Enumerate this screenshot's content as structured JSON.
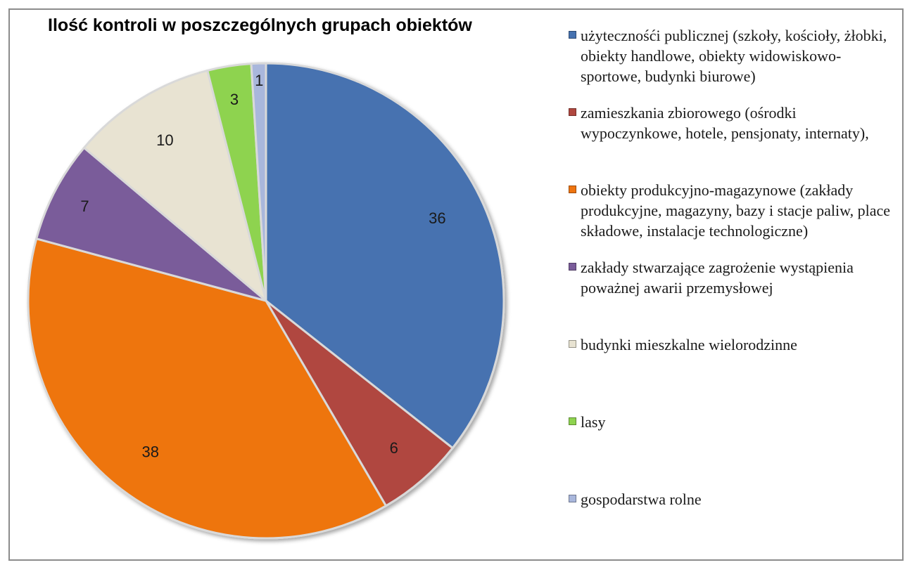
{
  "chart_data": {
    "type": "pie",
    "title": "Ilość kontroli w poszczególnych grupach obiektów",
    "legend_position": "right",
    "categories": [
      "użytecznośći publicznej (szkoły, kościoły, żłobki, obiekty handlowe, obiekty widowiskowo-sportowe, budynki biurowe)",
      "zamieszkania zbiorowego (ośrodki wypoczynkowe, hotele, pensjonaty, internaty),",
      "obiekty produkcyjno-magazynowe (zakłady produkcyjne, magazyny, bazy i stacje paliw, place składowe, instalacje technologiczne)",
      "zakłady stwarzające zagrożenie wystąpienia poważnej awarii przemysłowej",
      "budynki mieszkalne wielorodzinne",
      "lasy",
      "gospodarstwa rolne"
    ],
    "values": [
      36,
      6,
      38,
      7,
      10,
      3,
      1
    ],
    "colors": [
      "#4672b0",
      "#b0473f",
      "#ee7410",
      "#7a5c9a",
      "#e8e3d2",
      "#8ed34f",
      "#a9b7dc"
    ]
  }
}
